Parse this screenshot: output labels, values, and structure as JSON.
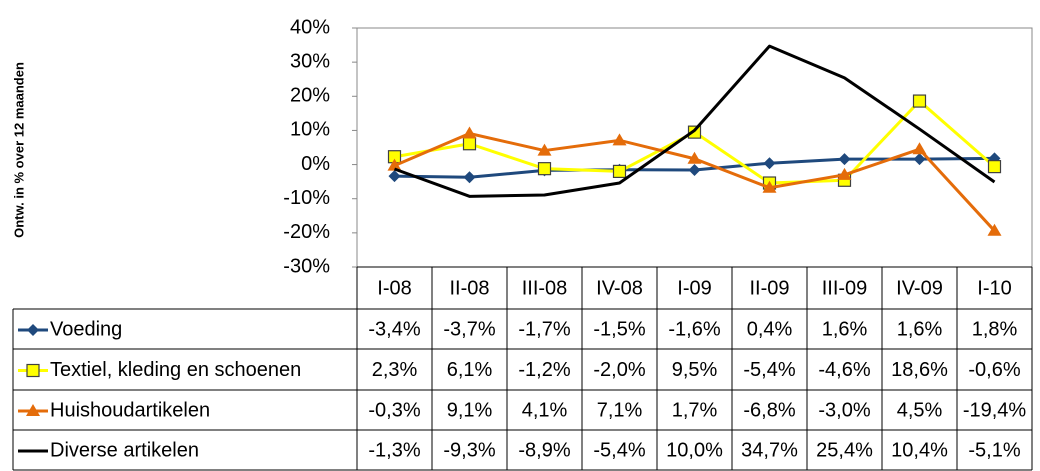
{
  "chart_data": {
    "type": "line",
    "y_axis_label": "Ontw. in % over 12 maanden",
    "categories": [
      "I-08",
      "II-08",
      "III-08",
      "IV-08",
      "I-09",
      "II-09",
      "III-09",
      "IV-09",
      "I-10"
    ],
    "ylim": [
      -30,
      40
    ],
    "yticks": [
      {
        "value": -30,
        "label": "-30%"
      },
      {
        "value": -20,
        "label": "-20%"
      },
      {
        "value": -10,
        "label": "-10%"
      },
      {
        "value": 0,
        "label": "0%"
      },
      {
        "value": 10,
        "label": "10%"
      },
      {
        "value": 20,
        "label": "20%"
      },
      {
        "value": 30,
        "label": "30%"
      },
      {
        "value": 40,
        "label": "40%"
      }
    ],
    "series": [
      {
        "name": "Voeding",
        "color": "#1f497d",
        "marker": "diamond",
        "values": [
          -3.4,
          -3.7,
          -1.7,
          -1.5,
          -1.6,
          0.4,
          1.6,
          1.6,
          1.8
        ],
        "value_labels": [
          "-3,4%",
          "-3,7%",
          "-1,7%",
          "-1,5%",
          "-1,6%",
          "0,4%",
          "1,6%",
          "1,6%",
          "1,8%"
        ]
      },
      {
        "name": "Textiel, kleding en schoenen",
        "color": "#ffff00",
        "marker": "square",
        "values": [
          2.3,
          6.1,
          -1.2,
          -2.0,
          9.5,
          -5.4,
          -4.6,
          18.6,
          -0.6
        ],
        "value_labels": [
          "2,3%",
          "6,1%",
          "-1,2%",
          "-2,0%",
          "9,5%",
          "-5,4%",
          "-4,6%",
          "18,6%",
          "-0,6%"
        ]
      },
      {
        "name": "Huishoudartikelen",
        "color": "#e46c0a",
        "marker": "triangle",
        "values": [
          -0.3,
          9.1,
          4.1,
          7.1,
          1.7,
          -6.8,
          -3.0,
          4.5,
          -19.4
        ],
        "value_labels": [
          "-0,3%",
          "9,1%",
          "4,1%",
          "7,1%",
          "1,7%",
          "-6,8%",
          "-3,0%",
          "4,5%",
          "-19,4%"
        ]
      },
      {
        "name": "Diverse artikelen",
        "color": "#000000",
        "marker": "none",
        "values": [
          -1.3,
          -9.3,
          -8.9,
          -5.4,
          10.0,
          34.7,
          25.4,
          10.4,
          -5.1
        ],
        "value_labels": [
          "-1,3%",
          "-9,3%",
          "-8,9%",
          "-5,4%",
          "10,0%",
          "34,7%",
          "25,4%",
          "10,4%",
          "-5,1%"
        ]
      }
    ]
  }
}
